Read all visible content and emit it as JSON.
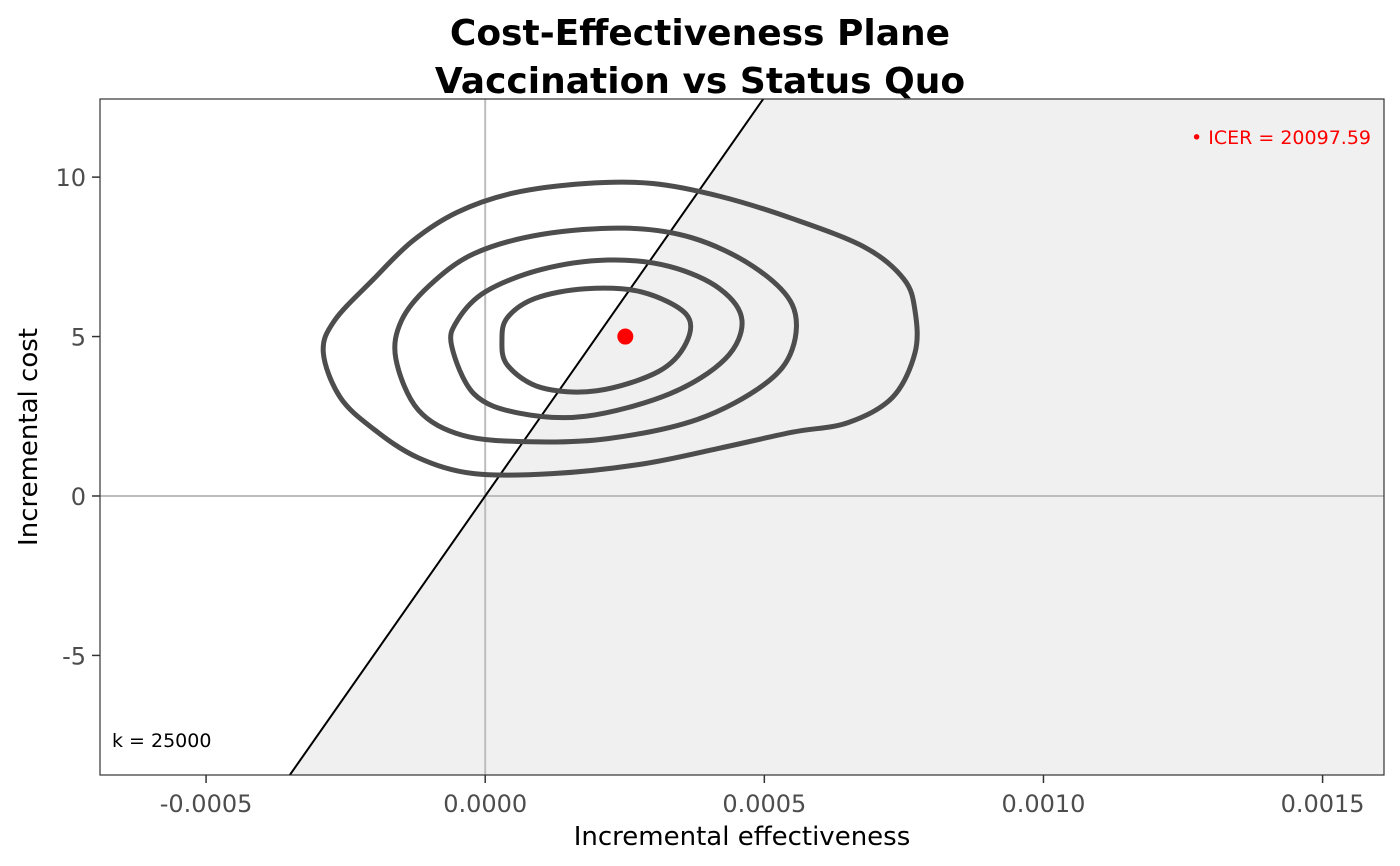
{
  "chart_data": {
    "type": "scatter",
    "title_lines": [
      "Cost-Effectiveness Plane",
      "Vaccination vs Status Quo"
    ],
    "xlabel": "Incremental effectiveness",
    "ylabel": "Incremental cost",
    "xlim": [
      -0.00069,
      0.00161
    ],
    "ylim": [
      -8.75,
      12.45
    ],
    "x_ticks": [
      -0.0005,
      0.0,
      0.0005,
      0.001,
      0.0015
    ],
    "x_tick_labels": [
      "-0.0005",
      "0.0000",
      "0.0005",
      "0.0010",
      "0.0015"
    ],
    "y_ticks": [
      -5,
      0,
      5,
      10
    ],
    "y_tick_labels": [
      "-5",
      "0",
      "5",
      "10"
    ],
    "wtp_k": 25000,
    "k_label": "k = 25000",
    "icer_label": "• ICER = 20097.59",
    "icer_point": {
      "x": 0.000251,
      "y": 5.0
    },
    "contours": [
      [
        [
          -0.00029,
          4.5
        ],
        [
          -0.00027,
          5.5
        ],
        [
          -0.0002,
          6.8
        ],
        [
          -0.00013,
          8.0
        ],
        [
          -5e-05,
          8.9
        ],
        [
          5e-05,
          9.5
        ],
        [
          0.00018,
          9.8
        ],
        [
          0.0003,
          9.8
        ],
        [
          0.00042,
          9.4
        ],
        [
          0.00055,
          8.7
        ],
        [
          0.00068,
          7.8
        ],
        [
          0.00075,
          6.8
        ],
        [
          0.00077,
          5.8
        ],
        [
          0.00077,
          4.5
        ],
        [
          0.00073,
          3.1
        ],
        [
          0.00065,
          2.3
        ],
        [
          0.00055,
          2.0
        ],
        [
          0.00042,
          1.5
        ],
        [
          0.00028,
          1.0
        ],
        [
          0.00012,
          0.7
        ],
        [
          -2e-05,
          0.7
        ],
        [
          -0.00012,
          1.2
        ],
        [
          -0.0002,
          2.1
        ],
        [
          -0.00026,
          3.1
        ],
        [
          -0.00029,
          4.5
        ]
      ],
      [
        [
          -0.00016,
          4.3
        ],
        [
          -0.00015,
          5.5
        ],
        [
          -0.0001,
          6.6
        ],
        [
          -2e-05,
          7.6
        ],
        [
          0.0001,
          8.2
        ],
        [
          0.00025,
          8.4
        ],
        [
          0.00037,
          8.1
        ],
        [
          0.00048,
          7.2
        ],
        [
          0.00055,
          6.0
        ],
        [
          0.00055,
          4.6
        ],
        [
          0.0005,
          3.5
        ],
        [
          0.00038,
          2.4
        ],
        [
          0.00022,
          1.8
        ],
        [
          8e-05,
          1.7
        ],
        [
          -4e-05,
          1.9
        ],
        [
          -0.00012,
          2.7
        ],
        [
          -0.00016,
          4.3
        ]
      ],
      [
        [
          -6e-05,
          4.7
        ],
        [
          -5e-05,
          5.5
        ],
        [
          0.0,
          6.4
        ],
        [
          0.0001,
          7.1
        ],
        [
          0.00022,
          7.4
        ],
        [
          0.00033,
          7.2
        ],
        [
          0.00042,
          6.5
        ],
        [
          0.00046,
          5.5
        ],
        [
          0.00043,
          4.3
        ],
        [
          0.00033,
          3.2
        ],
        [
          0.00018,
          2.5
        ],
        [
          6e-05,
          2.6
        ],
        [
          -2e-05,
          3.2
        ],
        [
          -6e-05,
          4.7
        ]
      ],
      [
        [
          3e-05,
          4.9
        ],
        [
          4e-05,
          5.6
        ],
        [
          9e-05,
          6.2
        ],
        [
          0.00018,
          6.5
        ],
        [
          0.00028,
          6.4
        ],
        [
          0.00036,
          5.7
        ],
        [
          0.00036,
          4.8
        ],
        [
          0.00031,
          3.9
        ],
        [
          0.0002,
          3.3
        ],
        [
          0.0001,
          3.4
        ],
        [
          4e-05,
          4.1
        ],
        [
          3e-05,
          4.9
        ]
      ]
    ],
    "contour_color": "#4d4d4d",
    "icer_color": "#ff0000",
    "ce_region_fill": "#f0f0f0",
    "legend": "none"
  }
}
